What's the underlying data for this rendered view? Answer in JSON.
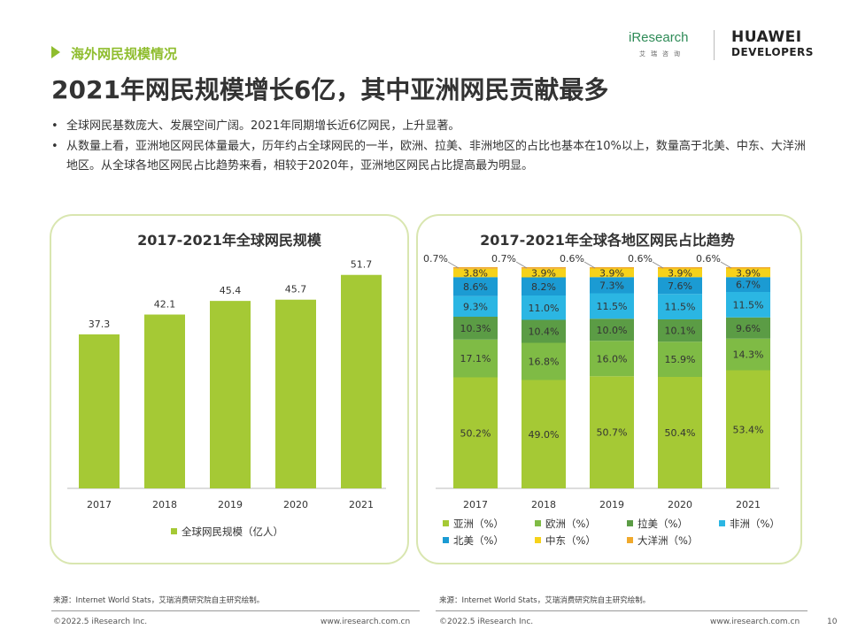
{
  "header": {
    "section_label": "海外网民规模情况",
    "title": "2021年网民规模增长6亿，其中亚洲网民贡献最多",
    "logo_iresearch": "iResearch",
    "logo_iresearch_sub": "艾瑞咨询",
    "logo_huawei_line1": "HUAWEI",
    "logo_huawei_line2": "DEVELOPERS"
  },
  "bullets": [
    "全球网民基数庞大、发展空间广阔。2021年同期增长近6亿网民，上升显著。",
    "从数量上看，亚洲地区网民体量最大，历年约占全球网民的一半，欧洲、拉美、非洲地区的占比也基本在10%以上，数量高于北美、中东、大洋洲地区。从全球各地区网民占比趋势来看，相较于2020年，亚洲地区网民占比提高最为明显。"
  ],
  "chart_data": [
    {
      "type": "bar",
      "title": "2017-2021年全球网民规模",
      "categories": [
        "2017",
        "2018",
        "2019",
        "2020",
        "2021"
      ],
      "series": [
        {
          "name": "全球网民规模（亿人）",
          "values": [
            37.3,
            42.1,
            45.4,
            45.7,
            51.7
          ],
          "color": "#a5c935"
        }
      ],
      "ylim": [
        0,
        60
      ]
    },
    {
      "type": "bar",
      "stacked": true,
      "title": "2017-2021年全球各地区网民占比趋势",
      "categories": [
        "2017",
        "2018",
        "2019",
        "2020",
        "2021"
      ],
      "series": [
        {
          "name": "亚洲（%）",
          "values": [
            50.2,
            49.0,
            50.7,
            50.4,
            53.4
          ],
          "color": "#a5c935",
          "labels": [
            "50.2%",
            "49.0%",
            "50.7%",
            "50.4%",
            "53.4%"
          ]
        },
        {
          "name": "欧洲（%）",
          "values": [
            17.1,
            16.8,
            16.0,
            15.9,
            14.3
          ],
          "color": "#7fbb45",
          "labels": [
            "17.1%",
            "16.8%",
            "16.0%",
            "15.9%",
            "14.3%"
          ]
        },
        {
          "name": "拉美（%）",
          "values": [
            10.3,
            10.4,
            10.0,
            10.1,
            9.6
          ],
          "color": "#5b9c45",
          "labels": [
            "10.3%",
            "10.4%",
            "10.0%",
            "10.1%",
            "9.6%"
          ]
        },
        {
          "name": "非洲（%）",
          "values": [
            9.3,
            11.0,
            11.5,
            11.5,
            11.5
          ],
          "color": "#2bb6e3",
          "labels": [
            "9.3%",
            "11.0%",
            "11.5%",
            "11.5%",
            "11.5%"
          ]
        },
        {
          "name": "北美（%）",
          "values": [
            8.6,
            8.2,
            7.3,
            7.6,
            6.7
          ],
          "color": "#1b9bd3",
          "labels": [
            "8.6%",
            "8.2%",
            "7.3%",
            "7.6%",
            "6.7%"
          ]
        },
        {
          "name": "中东（%）",
          "values": [
            3.8,
            3.9,
            3.9,
            3.9,
            3.9
          ],
          "color": "#f6d21a",
          "labels": [
            "3.8%",
            "3.9%",
            "3.9%",
            "3.9%",
            "3.9%"
          ]
        },
        {
          "name": "大洋洲（%）",
          "values": [
            0.7,
            0.7,
            0.6,
            0.6,
            0.6
          ],
          "color": "#f0a92c",
          "labels": [
            "0.7%",
            "0.7%",
            "0.6%",
            "0.6%",
            "0.6%"
          ]
        }
      ],
      "ylim": [
        0,
        100
      ]
    }
  ],
  "sources": {
    "left": "来源：Internet World Stats，艾瑞消费研究院自主研究绘制。",
    "right": "来源：Internet World Stats，艾瑞消费研究院自主研究绘制。"
  },
  "footer": {
    "copyright_left": "©2022.5 iResearch Inc.",
    "url_left": "www.iresearch.com.cn",
    "copyright_right": "©2022.5 iResearch Inc.",
    "url_right": "www.iresearch.com.cn",
    "page_number": "10"
  }
}
